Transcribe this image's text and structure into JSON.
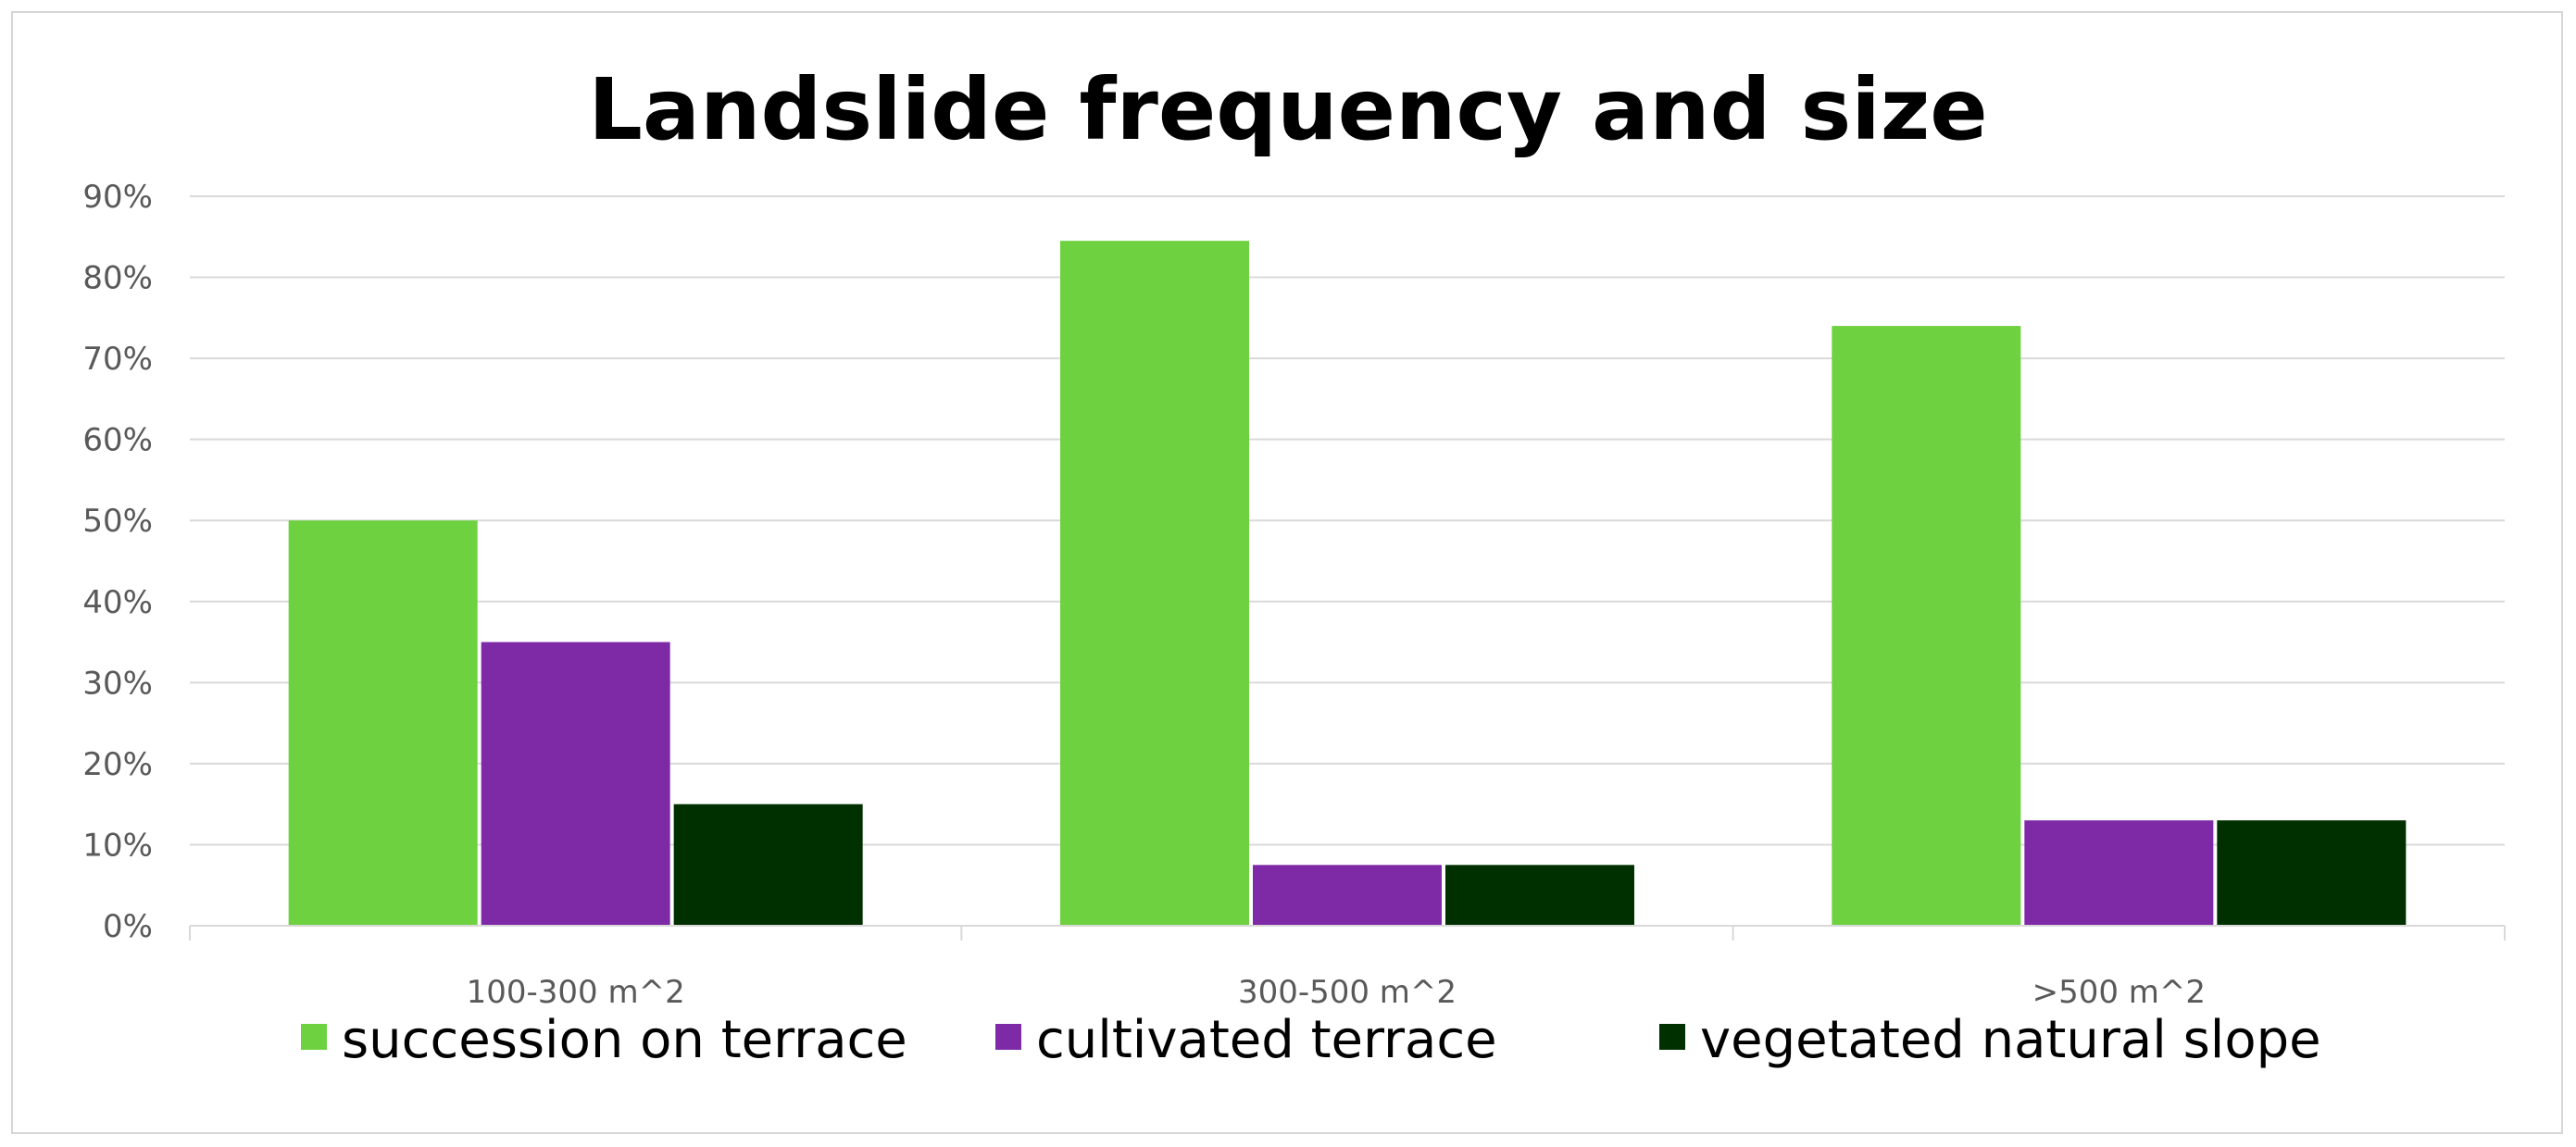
{
  "chart_data": {
    "type": "bar",
    "title": "Landslide frequency and size",
    "xlabel": "",
    "ylabel": "",
    "categories": [
      "100-300 m^2",
      "300-500 m^2",
      ">500 m^2"
    ],
    "ylim": [
      0,
      90
    ],
    "yticks": [
      0,
      10,
      20,
      30,
      40,
      50,
      60,
      70,
      80,
      90
    ],
    "ytick_labels": [
      "0%",
      "10%",
      "20%",
      "30%",
      "40%",
      "50%",
      "60%",
      "70%",
      "80%",
      "90%"
    ],
    "grid": true,
    "legend_position": "bottom",
    "series": [
      {
        "name": "succession on terrace",
        "color": "#6dd140",
        "values": [
          50,
          84.5,
          74
        ]
      },
      {
        "name": "cultivated terrace",
        "color": "#7e2aa6",
        "values": [
          35,
          7.5,
          13
        ]
      },
      {
        "name": "vegetated natural slope",
        "color": "#003000",
        "values": [
          15,
          7.5,
          13
        ]
      }
    ]
  }
}
